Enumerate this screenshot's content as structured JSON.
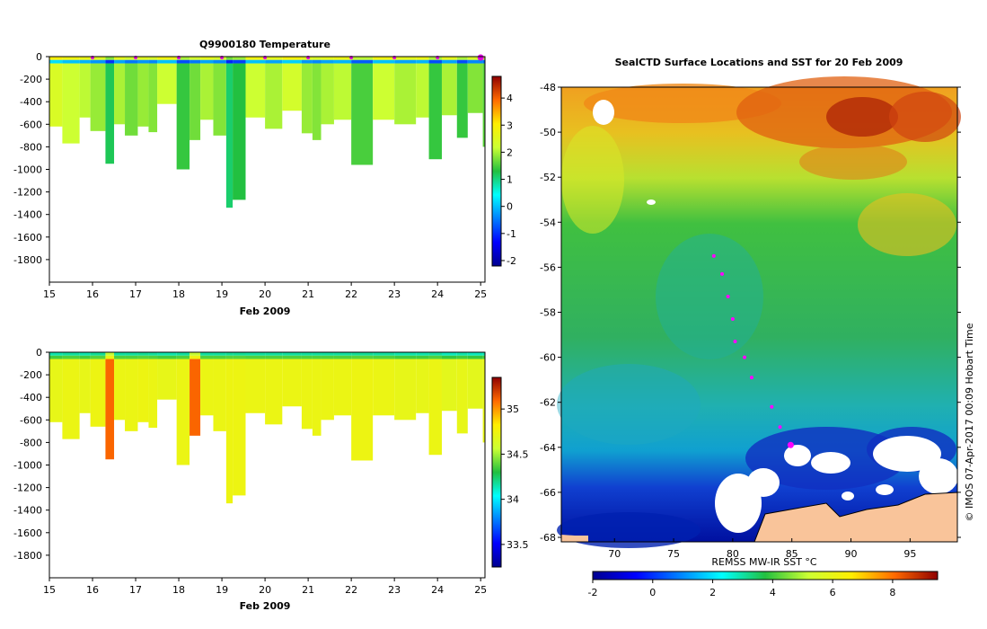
{
  "chart_data": [
    {
      "type": "heatmap",
      "title": "Q9900180  Temperature",
      "xlabel": "Feb 2009",
      "x_ticks": [
        "15",
        "16",
        "17",
        "18",
        "19",
        "20",
        "21",
        "22",
        "23",
        "24",
        "25"
      ],
      "xlim": [
        15,
        25.1
      ],
      "y_ticks": [
        "0",
        "-200",
        "-400",
        "-600",
        "-800",
        "-1000",
        "-1200",
        "-1400",
        "-1600",
        "-1800"
      ],
      "ylim": [
        -2000,
        0
      ],
      "colorbar_ticks": [
        "4",
        "3",
        "2",
        "1",
        "0",
        "-1",
        "-2"
      ],
      "colorbar_range": [
        -2.2,
        4.8
      ],
      "profile_markers_x": [
        16,
        17,
        18,
        19,
        20,
        21,
        22,
        23,
        24,
        25
      ],
      "profiles": [
        {
          "x0": 15.0,
          "x1": 15.3,
          "depth": 620,
          "value": 2.4
        },
        {
          "x0": 15.3,
          "x1": 15.7,
          "depth": 770,
          "value": 2.2
        },
        {
          "x0": 15.7,
          "x1": 15.95,
          "depth": 540,
          "value": 2.1
        },
        {
          "x0": 15.95,
          "x1": 16.3,
          "depth": 660,
          "value": 1.9
        },
        {
          "x0": 16.3,
          "x1": 16.5,
          "depth": 950,
          "value": 1.2
        },
        {
          "x0": 16.5,
          "x1": 16.75,
          "depth": 600,
          "value": 2.0
        },
        {
          "x0": 16.75,
          "x1": 17.05,
          "depth": 700,
          "value": 1.7
        },
        {
          "x0": 17.05,
          "x1": 17.3,
          "depth": 620,
          "value": 1.9
        },
        {
          "x0": 17.3,
          "x1": 17.5,
          "depth": 670,
          "value": 1.8
        },
        {
          "x0": 17.5,
          "x1": 17.95,
          "depth": 420,
          "value": 2.2
        },
        {
          "x0": 17.95,
          "x1": 18.25,
          "depth": 1000,
          "value": 1.4
        },
        {
          "x0": 18.25,
          "x1": 18.5,
          "depth": 740,
          "value": 1.7
        },
        {
          "x0": 18.5,
          "x1": 18.8,
          "depth": 560,
          "value": 2.0
        },
        {
          "x0": 18.8,
          "x1": 19.1,
          "depth": 700,
          "value": 1.8
        },
        {
          "x0": 19.1,
          "x1": 19.25,
          "depth": 1340,
          "value": 1.1
        },
        {
          "x0": 19.25,
          "x1": 19.55,
          "depth": 1270,
          "value": 1.3
        },
        {
          "x0": 19.55,
          "x1": 20.0,
          "depth": 540,
          "value": 2.2
        },
        {
          "x0": 20.0,
          "x1": 20.4,
          "depth": 640,
          "value": 2.0
        },
        {
          "x0": 20.4,
          "x1": 20.85,
          "depth": 480,
          "value": 2.3
        },
        {
          "x0": 20.85,
          "x1": 21.1,
          "depth": 680,
          "value": 1.9
        },
        {
          "x0": 21.1,
          "x1": 21.3,
          "depth": 740,
          "value": 1.8
        },
        {
          "x0": 21.3,
          "x1": 21.6,
          "depth": 600,
          "value": 2.0
        },
        {
          "x0": 21.6,
          "x1": 22.0,
          "depth": 560,
          "value": 2.1
        },
        {
          "x0": 22.0,
          "x1": 22.5,
          "depth": 960,
          "value": 1.5
        },
        {
          "x0": 22.5,
          "x1": 23.0,
          "depth": 560,
          "value": 2.2
        },
        {
          "x0": 23.0,
          "x1": 23.5,
          "depth": 600,
          "value": 2.0
        },
        {
          "x0": 23.5,
          "x1": 23.8,
          "depth": 540,
          "value": 2.1
        },
        {
          "x0": 23.8,
          "x1": 24.1,
          "depth": 910,
          "value": 1.4
        },
        {
          "x0": 24.1,
          "x1": 24.45,
          "depth": 520,
          "value": 2.0
        },
        {
          "x0": 24.45,
          "x1": 24.7,
          "depth": 720,
          "value": 1.4
        },
        {
          "x0": 24.7,
          "x1": 25.05,
          "depth": 500,
          "value": 1.8
        },
        {
          "x0": 25.05,
          "x1": 25.1,
          "depth": 800,
          "value": 1.6
        }
      ]
    },
    {
      "type": "heatmap",
      "title": "",
      "xlabel": "Feb 2009",
      "x_ticks": [
        "15",
        "16",
        "17",
        "18",
        "19",
        "20",
        "21",
        "22",
        "23",
        "24",
        "25"
      ],
      "xlim": [
        15,
        25.1
      ],
      "y_ticks": [
        "0",
        "-200",
        "-400",
        "-600",
        "-800",
        "-1000",
        "-1200",
        "-1400",
        "-1600",
        "-1800"
      ],
      "ylim": [
        -2000,
        0
      ],
      "colorbar_ticks": [
        "35",
        "34.5",
        "34",
        "33.5"
      ],
      "colorbar_range": [
        33.25,
        35.35
      ],
      "profiles": [
        {
          "x0": 15.0,
          "x1": 15.3,
          "depth": 620,
          "value": 34.7
        },
        {
          "x0": 15.3,
          "x1": 15.7,
          "depth": 770,
          "value": 34.72
        },
        {
          "x0": 15.7,
          "x1": 15.95,
          "depth": 540,
          "value": 34.7
        },
        {
          "x0": 15.95,
          "x1": 16.3,
          "depth": 660,
          "value": 34.73
        },
        {
          "x0": 16.3,
          "x1": 16.5,
          "depth": 950,
          "value": 35.1
        },
        {
          "x0": 16.5,
          "x1": 16.75,
          "depth": 600,
          "value": 34.72
        },
        {
          "x0": 16.75,
          "x1": 17.05,
          "depth": 700,
          "value": 34.72
        },
        {
          "x0": 17.05,
          "x1": 17.3,
          "depth": 620,
          "value": 34.73
        },
        {
          "x0": 17.3,
          "x1": 17.5,
          "depth": 670,
          "value": 34.72
        },
        {
          "x0": 17.5,
          "x1": 17.95,
          "depth": 420,
          "value": 34.7
        },
        {
          "x0": 17.95,
          "x1": 18.25,
          "depth": 1000,
          "value": 34.72
        },
        {
          "x0": 18.25,
          "x1": 18.5,
          "depth": 740,
          "value": 35.1
        },
        {
          "x0": 18.5,
          "x1": 18.8,
          "depth": 560,
          "value": 34.72
        },
        {
          "x0": 18.8,
          "x1": 19.1,
          "depth": 700,
          "value": 34.72
        },
        {
          "x0": 19.1,
          "x1": 19.25,
          "depth": 1340,
          "value": 34.73
        },
        {
          "x0": 19.25,
          "x1": 19.55,
          "depth": 1270,
          "value": 34.73
        },
        {
          "x0": 19.55,
          "x1": 20.0,
          "depth": 540,
          "value": 34.72
        },
        {
          "x0": 20.0,
          "x1": 20.4,
          "depth": 640,
          "value": 34.72
        },
        {
          "x0": 20.4,
          "x1": 20.85,
          "depth": 480,
          "value": 34.72
        },
        {
          "x0": 20.85,
          "x1": 21.1,
          "depth": 680,
          "value": 34.72
        },
        {
          "x0": 21.1,
          "x1": 21.3,
          "depth": 740,
          "value": 34.72
        },
        {
          "x0": 21.3,
          "x1": 21.6,
          "depth": 600,
          "value": 34.72
        },
        {
          "x0": 21.6,
          "x1": 22.0,
          "depth": 560,
          "value": 34.72
        },
        {
          "x0": 22.0,
          "x1": 22.5,
          "depth": 960,
          "value": 34.73
        },
        {
          "x0": 22.5,
          "x1": 23.0,
          "depth": 560,
          "value": 34.72
        },
        {
          "x0": 23.0,
          "x1": 23.5,
          "depth": 600,
          "value": 34.7
        },
        {
          "x0": 23.5,
          "x1": 23.8,
          "depth": 540,
          "value": 34.7
        },
        {
          "x0": 23.8,
          "x1": 24.1,
          "depth": 910,
          "value": 34.72
        },
        {
          "x0": 24.1,
          "x1": 24.45,
          "depth": 520,
          "value": 34.68
        },
        {
          "x0": 24.45,
          "x1": 24.7,
          "depth": 720,
          "value": 34.7
        },
        {
          "x0": 24.7,
          "x1": 25.05,
          "depth": 500,
          "value": 34.68
        },
        {
          "x0": 25.05,
          "x1": 25.1,
          "depth": 800,
          "value": 34.7
        }
      ]
    },
    {
      "type": "heatmap",
      "title": "SealCTD Surface Locations and SST for 20 Feb 2009",
      "x_ticks": [
        "70",
        "75",
        "80",
        "85",
        "90",
        "95"
      ],
      "xlim": [
        65.5,
        99
      ],
      "y_ticks": [
        "-48",
        "-50",
        "-52",
        "-54",
        "-56",
        "-58",
        "-60",
        "-62",
        "-64",
        "-66",
        "-68"
      ],
      "ylim": [
        -68.2,
        -48
      ],
      "colorbar_label": "REMSS MW-IR SST °C",
      "colorbar_ticks": [
        "-2",
        "0",
        "2",
        "4",
        "6",
        "8"
      ],
      "colorbar_range": [
        -2,
        9.5
      ],
      "side_label": "© IMOS 07-Apr-2017 00:09 Hobart Time",
      "track_points": [
        {
          "lon": 78.4,
          "lat": -55.5
        },
        {
          "lon": 79.1,
          "lat": -56.3
        },
        {
          "lon": 79.6,
          "lat": -57.3
        },
        {
          "lon": 80.0,
          "lat": -58.3
        },
        {
          "lon": 80.2,
          "lat": -59.3
        },
        {
          "lon": 81.0,
          "lat": -60.0
        },
        {
          "lon": 81.6,
          "lat": -60.9
        },
        {
          "lon": 83.3,
          "lat": -62.2
        },
        {
          "lon": 84.0,
          "lat": -63.1
        },
        {
          "lon": 84.9,
          "lat": -63.9
        }
      ]
    }
  ]
}
